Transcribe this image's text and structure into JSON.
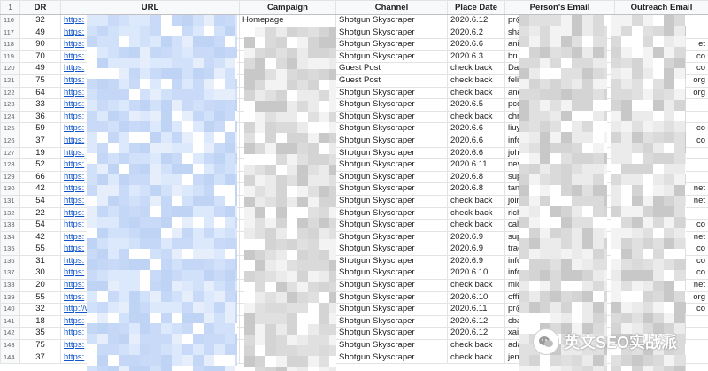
{
  "columns": {
    "rownum": "1",
    "dr": "DR",
    "url": "URL",
    "campaign": "Campaign",
    "channel": "Channel",
    "place_date": "Place Date",
    "person_email": "Person's Email",
    "outreach_email": "Outreach Email"
  },
  "rows": [
    {
      "n": "116",
      "dr": "32",
      "url": "https:",
      "campaign": "Homepage",
      "channel": "Shotgun Skyscraper",
      "date": "2020.6.12",
      "person": "pr@",
      "outreach": ""
    },
    {
      "n": "117",
      "dr": "49",
      "url": "https:",
      "campaign": "",
      "channel": "Shotgun Skyscraper",
      "date": "2020.6.2",
      "person": "sha",
      "outreach": ""
    },
    {
      "n": "118",
      "dr": "90",
      "url": "https:",
      "campaign": "",
      "channel": "Shotgun Skyscraper",
      "date": "2020.6.6",
      "person": "ani",
      "outreach": "et"
    },
    {
      "n": "119",
      "dr": "70",
      "url": "https:",
      "campaign": "",
      "channel": "Shotgun Skyscraper",
      "date": "2020.6.3",
      "person": "bru",
      "outreach": "co"
    },
    {
      "n": "120",
      "dr": "49",
      "url": "https:",
      "campaign": "",
      "channel": "Guest Post",
      "date": "check back",
      "person": "Da",
      "outreach": "co"
    },
    {
      "n": "121",
      "dr": "75",
      "url": "https:",
      "campaign": "",
      "channel": "Guest Post",
      "date": "check back",
      "person": "feli",
      "outreach": "org"
    },
    {
      "n": "122",
      "dr": "64",
      "url": "https:",
      "campaign": "",
      "channel": "Shotgun Skyscraper",
      "date": "check back",
      "person": "and",
      "outreach": "org"
    },
    {
      "n": "123",
      "dr": "33",
      "url": "https:",
      "campaign": "",
      "channel": "Shotgun Skyscraper",
      "date": "2020.6.5",
      "person": "pco",
      "outreach": ""
    },
    {
      "n": "124",
      "dr": "36",
      "url": "https:",
      "campaign": "",
      "channel": "Shotgun Skyscraper",
      "date": "check back",
      "person": "chr",
      "outreach": ""
    },
    {
      "n": "125",
      "dr": "59",
      "url": "https:",
      "campaign": "",
      "channel": "Shotgun Skyscraper",
      "date": "2020.6.6",
      "person": "liuy",
      "outreach": "co"
    },
    {
      "n": "126",
      "dr": "37",
      "url": "https:",
      "campaign": "",
      "channel": "Shotgun Skyscraper",
      "date": "2020.6.6",
      "person": "info",
      "outreach": "co"
    },
    {
      "n": "127",
      "dr": "19",
      "url": "https:",
      "campaign": "",
      "channel": "Shotgun Skyscraper",
      "date": "2020.6.6",
      "person": "joh",
      "outreach": ""
    },
    {
      "n": "128",
      "dr": "52",
      "url": "https:",
      "campaign": "",
      "channel": "Shotgun Skyscraper",
      "date": "2020.6.11",
      "person": "nev",
      "outreach": ""
    },
    {
      "n": "129",
      "dr": "66",
      "url": "https:",
      "campaign": "",
      "channel": "Shotgun Skyscraper",
      "date": "2020.6.8",
      "person": "sup",
      "outreach": ""
    },
    {
      "n": "130",
      "dr": "42",
      "url": "https:",
      "campaign": "",
      "channel": "Shotgun Skyscraper",
      "date": "2020.6.8",
      "person": "tan",
      "outreach": "net"
    },
    {
      "n": "131",
      "dr": "54",
      "url": "https:",
      "campaign": "",
      "channel": "Shotgun Skyscraper",
      "date": "check back",
      "person": "join",
      "outreach": "net"
    },
    {
      "n": "132",
      "dr": "22",
      "url": "https:",
      "campaign": "",
      "channel": "Shotgun Skyscraper",
      "date": "check back",
      "person": "rich",
      "outreach": ""
    },
    {
      "n": "133",
      "dr": "54",
      "url": "https:",
      "campaign": "",
      "channel": "Shotgun Skyscraper",
      "date": "check back",
      "person": "cali",
      "outreach": "co"
    },
    {
      "n": "134",
      "dr": "42",
      "url": "https:",
      "campaign": "",
      "channel": "Shotgun Skyscraper",
      "date": "2020.6.9",
      "person": "sup",
      "outreach": "net"
    },
    {
      "n": "135",
      "dr": "55",
      "url": "https:",
      "campaign": "",
      "channel": "Shotgun Skyscraper",
      "date": "2020.6.9",
      "person": "trac",
      "outreach": "co"
    },
    {
      "n": "136",
      "dr": "31",
      "url": "https:",
      "campaign": "",
      "channel": "Shotgun Skyscraper",
      "date": "2020.6.9",
      "person": "info",
      "outreach": "co"
    },
    {
      "n": "137",
      "dr": "30",
      "url": "https:",
      "campaign": "",
      "channel": "Shotgun Skyscraper",
      "date": "2020.6.10",
      "person": "info",
      "outreach": "co"
    },
    {
      "n": "138",
      "dr": "20",
      "url": "https:",
      "campaign": "",
      "channel": "Shotgun Skyscraper",
      "date": "check back",
      "person": "mic",
      "outreach": "net"
    },
    {
      "n": "139",
      "dr": "55",
      "url": "https:",
      "campaign": "",
      "channel": "Shotgun Skyscraper",
      "date": "2020.6.10",
      "person": "offi",
      "outreach": "org"
    },
    {
      "n": "140",
      "dr": "32",
      "url": "http://w",
      "campaign": "",
      "channel": "Shotgun Skyscraper",
      "date": "2020.6.11",
      "person": "pr@",
      "outreach": "co"
    },
    {
      "n": "141",
      "dr": "18",
      "url": "https:",
      "campaign": "",
      "channel": "Shotgun Skyscraper",
      "date": "2020.6.12",
      "person": "cba",
      "outreach": ""
    },
    {
      "n": "142",
      "dr": "35",
      "url": "https:",
      "campaign": "",
      "channel": "Shotgun Skyscraper",
      "date": "2020.6.12",
      "person": "xai",
      "outreach": ""
    },
    {
      "n": "143",
      "dr": "75",
      "url": "https:",
      "campaign": "",
      "channel": "Shotgun Skyscraper",
      "date": "check back",
      "person": "ada",
      "outreach": ""
    },
    {
      "n": "144",
      "dr": "37",
      "url": "https:",
      "campaign": "",
      "channel": "Shotgun Skyscraper",
      "date": "check back",
      "person": "jen",
      "outreach": ""
    }
  ],
  "watermark": {
    "text": "英文SEO实战派",
    "icon": "wechat-icon"
  }
}
